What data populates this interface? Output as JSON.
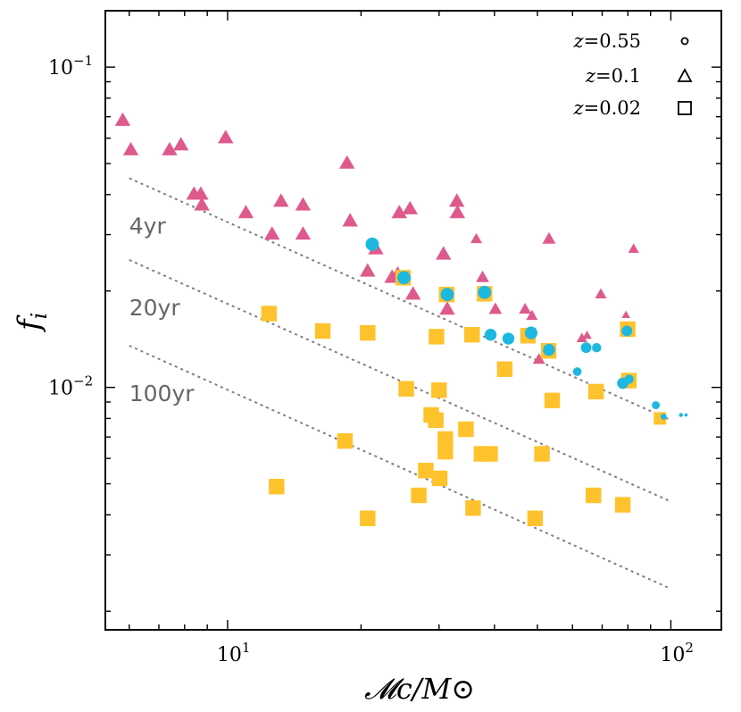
{
  "chart_data": {
    "type": "scatter",
    "xscale": "log",
    "yscale": "log",
    "xlabel": "𝓜c/M⊙",
    "ylabel": "f_i",
    "xlim": [
      5.3,
      130
    ],
    "ylim": [
      0.00175,
      0.15
    ],
    "x_ticks": [
      {
        "value": 10,
        "base": "10",
        "exp": "1"
      },
      {
        "value": 100,
        "base": "10",
        "exp": "2"
      }
    ],
    "y_ticks": [
      {
        "value": 0.01,
        "base": "10",
        "exp": "−2"
      },
      {
        "value": 0.1,
        "base": "10",
        "exp": "−1"
      }
    ],
    "legend": {
      "position": "top-right",
      "entries": [
        {
          "label": "z = 0.55",
          "var": "z",
          "eq": "=",
          "num": "0.55",
          "marker": "circle"
        },
        {
          "label": "z = 0.1",
          "var": "z",
          "eq": "=",
          "num": "0.1",
          "marker": "triangle"
        },
        {
          "label": "z = 0.02",
          "var": "z",
          "eq": "=",
          "num": "0.02",
          "marker": "square"
        }
      ]
    },
    "reference_lines": [
      {
        "label": "4yr",
        "x": [
          6,
          100
        ],
        "y": [
          0.045,
          0.0079
        ],
        "color": "#7f7f7f",
        "style": "dotted"
      },
      {
        "label": "20yr",
        "x": [
          6,
          100
        ],
        "y": [
          0.025,
          0.0044
        ],
        "color": "#7f7f7f",
        "style": "dotted"
      },
      {
        "label": "100yr",
        "x": [
          6,
          100
        ],
        "y": [
          0.0135,
          0.00235
        ],
        "color": "#7f7f7f",
        "style": "dotted"
      }
    ],
    "series": [
      {
        "name": "z=0.1",
        "marker": "triangle",
        "color": "#de5a8d",
        "points": [
          [
            5.8,
            0.068,
            1
          ],
          [
            6.05,
            0.055,
            1
          ],
          [
            7.4,
            0.055,
            1
          ],
          [
            7.85,
            0.057,
            1
          ],
          [
            8.4,
            0.04,
            1
          ],
          [
            8.7,
            0.04,
            1
          ],
          [
            8.75,
            0.037,
            1
          ],
          [
            9.9,
            0.06,
            1
          ],
          [
            11,
            0.035,
            1
          ],
          [
            12.6,
            0.03,
            1
          ],
          [
            13.2,
            0.038,
            1
          ],
          [
            14.8,
            0.03,
            1
          ],
          [
            14.8,
            0.037,
            1
          ],
          [
            18.6,
            0.05,
            1
          ],
          [
            18.9,
            0.033,
            1
          ],
          [
            20.7,
            0.023,
            1
          ],
          [
            21.6,
            0.027,
            1
          ],
          [
            23.5,
            0.022,
            1
          ],
          [
            24.2,
            0.0225,
            1
          ],
          [
            24.4,
            0.035,
            1
          ],
          [
            25.8,
            0.036,
            1
          ],
          [
            26.2,
            0.0195,
            1
          ],
          [
            30.7,
            0.026,
            1
          ],
          [
            31.3,
            0.0175,
            1
          ],
          [
            32.9,
            0.038,
            1
          ],
          [
            33,
            0.035,
            1
          ],
          [
            36.4,
            0.029,
            0.75
          ],
          [
            37.6,
            0.022,
            0.85
          ],
          [
            40.2,
            0.0175,
            0.85
          ],
          [
            46.9,
            0.0175,
            0.8
          ],
          [
            48.6,
            0.0167,
            0.75
          ],
          [
            50.4,
            0.0122,
            0.8
          ],
          [
            53.1,
            0.029,
            0.85
          ],
          [
            63,
            0.0142,
            0.7
          ],
          [
            64.7,
            0.0145,
            0.6
          ],
          [
            69.5,
            0.0195,
            0.75
          ],
          [
            79.2,
            0.0168,
            0.55
          ],
          [
            82.4,
            0.027,
            0.7
          ]
        ]
      },
      {
        "name": "z=0.02",
        "marker": "square",
        "color": "#fec22c",
        "points": [
          [
            12.4,
            0.017,
            1
          ],
          [
            12.9,
            0.0049,
            1
          ],
          [
            16.4,
            0.015,
            1
          ],
          [
            18.4,
            0.0068,
            1
          ],
          [
            20.7,
            0.0039,
            1
          ],
          [
            20.7,
            0.0148,
            1
          ],
          [
            24.9,
            0.022,
            1
          ],
          [
            25.3,
            0.0099,
            1
          ],
          [
            27,
            0.0046,
            1
          ],
          [
            28,
            0.0055,
            1
          ],
          [
            28.8,
            0.0082,
            1
          ],
          [
            29.5,
            0.0079,
            1
          ],
          [
            29.6,
            0.0144,
            1
          ],
          [
            30,
            0.0098,
            1
          ],
          [
            30.1,
            0.0052,
            1
          ],
          [
            31,
            0.0069,
            1
          ],
          [
            31,
            0.0063,
            1
          ],
          [
            31.2,
            0.0195,
            1
          ],
          [
            34.5,
            0.0074,
            1
          ],
          [
            35.6,
            0.0146,
            1
          ],
          [
            35.8,
            0.0042,
            1
          ],
          [
            37.4,
            0.0062,
            1
          ],
          [
            38,
            0.0196,
            1
          ],
          [
            39.1,
            0.0062,
            1
          ],
          [
            42.2,
            0.0114,
            1
          ],
          [
            47.6,
            0.0145,
            1
          ],
          [
            49.4,
            0.0039,
            1
          ],
          [
            51.2,
            0.0062,
            1
          ],
          [
            53,
            0.013,
            1
          ],
          [
            54,
            0.0091,
            1
          ],
          [
            66.9,
            0.0046,
            1
          ],
          [
            67.8,
            0.0097,
            1
          ],
          [
            77.9,
            0.0043,
            1
          ],
          [
            79.9,
            0.0152,
            1
          ],
          [
            80.4,
            0.0105,
            1
          ],
          [
            94.5,
            0.008,
            0.8
          ]
        ]
      },
      {
        "name": "z=0.55",
        "marker": "circle",
        "color": "#1cb8e0",
        "points": [
          [
            21.2,
            0.028,
            1
          ],
          [
            25,
            0.022,
            1
          ],
          [
            31.3,
            0.0195,
            1
          ],
          [
            38,
            0.0198,
            1
          ],
          [
            39.2,
            0.0146,
            0.9
          ],
          [
            43,
            0.0142,
            0.9
          ],
          [
            48.4,
            0.0148,
            0.95
          ],
          [
            53.1,
            0.0131,
            0.9
          ],
          [
            61.5,
            0.0112,
            0.65
          ],
          [
            64.4,
            0.0133,
            0.8
          ],
          [
            68,
            0.0133,
            0.7
          ],
          [
            77.9,
            0.0103,
            0.85
          ],
          [
            80.5,
            0.0106,
            0.7
          ],
          [
            79.6,
            0.015,
            0.8
          ],
          [
            92.5,
            0.0088,
            0.6
          ],
          [
            96.3,
            0.0081,
            0.45
          ],
          [
            105.4,
            0.0082,
            0.3
          ],
          [
            108.2,
            0.0082,
            0.25
          ]
        ]
      }
    ]
  }
}
